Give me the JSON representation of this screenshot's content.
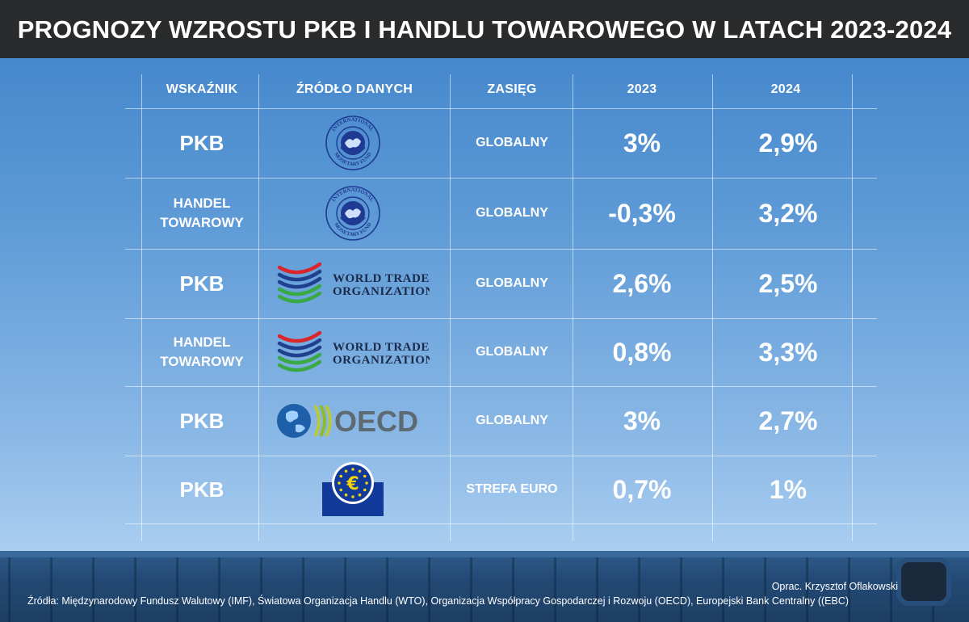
{
  "title": "PROGNOZY WZROSTU PKB I HANDLU TOWAROWEGO W LATACH 2023-2024",
  "chart_data": {
    "type": "table",
    "columns": [
      "WSKAŹNIK",
      "ŹRÓDŁO DANYCH",
      "ZASIĘG",
      "2023",
      "2024"
    ],
    "rows": [
      {
        "indicator": "PKB",
        "indicator_lines": [
          "PKB"
        ],
        "source": "IMF",
        "source_logo": "imf-logo",
        "scope": "GLOBALNY",
        "v2023": "3%",
        "v2024": "2,9%"
      },
      {
        "indicator": "HANDEL TOWAROWY",
        "indicator_lines": [
          "HANDEL",
          "TOWAROWY"
        ],
        "source": "IMF",
        "source_logo": "imf-logo",
        "scope": "GLOBALNY",
        "v2023": "-0,3%",
        "v2024": "3,2%"
      },
      {
        "indicator": "PKB",
        "indicator_lines": [
          "PKB"
        ],
        "source": "WTO",
        "source_logo": "wto-logo",
        "scope": "GLOBALNY",
        "v2023": "2,6%",
        "v2024": "2,5%"
      },
      {
        "indicator": "HANDEL TOWAROWY",
        "indicator_lines": [
          "HANDEL",
          "TOWAROWY"
        ],
        "source": "WTO",
        "source_logo": "wto-logo",
        "scope": "GLOBALNY",
        "v2023": "0,8%",
        "v2024": "3,3%"
      },
      {
        "indicator": "PKB",
        "indicator_lines": [
          "PKB"
        ],
        "source": "OECD",
        "source_logo": "oecd-logo",
        "scope": "GLOBALNY",
        "v2023": "3%",
        "v2024": "2,7%"
      },
      {
        "indicator": "PKB",
        "indicator_lines": [
          "PKB"
        ],
        "source": "EBC",
        "source_logo": "ecb-logo",
        "scope": "STREFA EURO",
        "v2023": "0,7%",
        "v2024": "1%"
      }
    ]
  },
  "logos": {
    "imf_text_top": "INTERNATIONAL",
    "imf_text_bottom": "MONETARY FUND",
    "wto_line1": "WORLD TRADE",
    "wto_line2": "ORGANIZATION",
    "oecd_text": "OECD"
  },
  "colors": {
    "title_bar": "#2a2b2c",
    "imf_blue": "#1f3a93",
    "wto_blue": "#1f3f8f",
    "wto_red": "#d9262c",
    "wto_green": "#3aa845",
    "oecd_blue": "#1d5fa8",
    "oecd_gray": "#5e6a72",
    "ecb_blue": "#113a9a",
    "ecb_yellow": "#f4d20a"
  },
  "footer": {
    "credit": "Oprac. Krzysztof Oflakowski",
    "sources": "Źródła: Międzynarodowy Fundusz Walutowy (IMF), Światowa Organizacja Handlu (WTO), Organizacja Współpracy Gospodarczej i Rozwoju (OECD), Europejski Bank Centralny ((EBC)"
  }
}
